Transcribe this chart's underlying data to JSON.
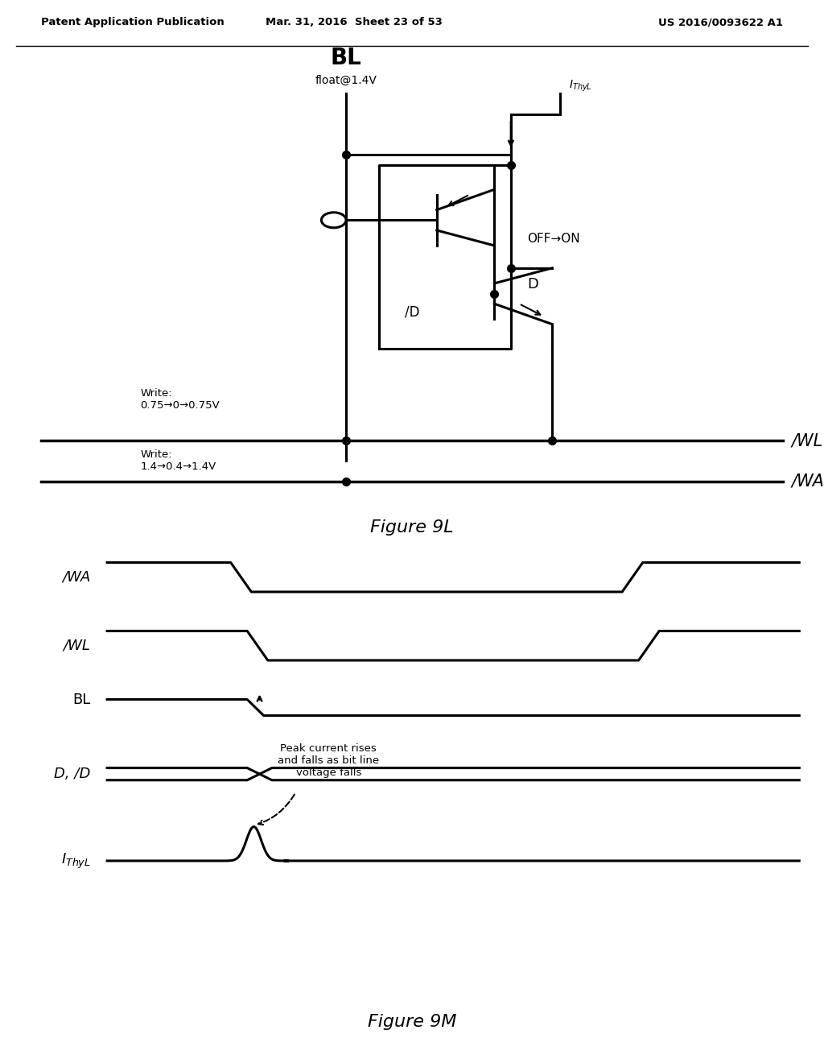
{
  "header_left": "Patent Application Publication",
  "header_center": "Mar. 31, 2016  Sheet 23 of 53",
  "header_right": "US 2016/0093622 A1",
  "fig9l_label": "Figure 9L",
  "fig9m_label": "Figure 9M",
  "bl_label": "BL",
  "bl_sub": "float@1.4V",
  "ithyl_label": "IThyL",
  "off_on_label": "OFF→ON",
  "d_label": "D",
  "slash_d_label": "/D",
  "wl_label": "/WL",
  "wa_label": "/WA",
  "write_wl": "Write:\n0.75→0→0.75V",
  "write_wa": "Write:\n1.4→0.4→1.4V",
  "waveform_labels": [
    "/WA",
    "/WL",
    "BL",
    "D, /D",
    "IThyL"
  ],
  "annotation": "Peak current rises\nand falls as bit line\nvoltage falls",
  "bg_color": "#ffffff",
  "line_color": "#000000"
}
